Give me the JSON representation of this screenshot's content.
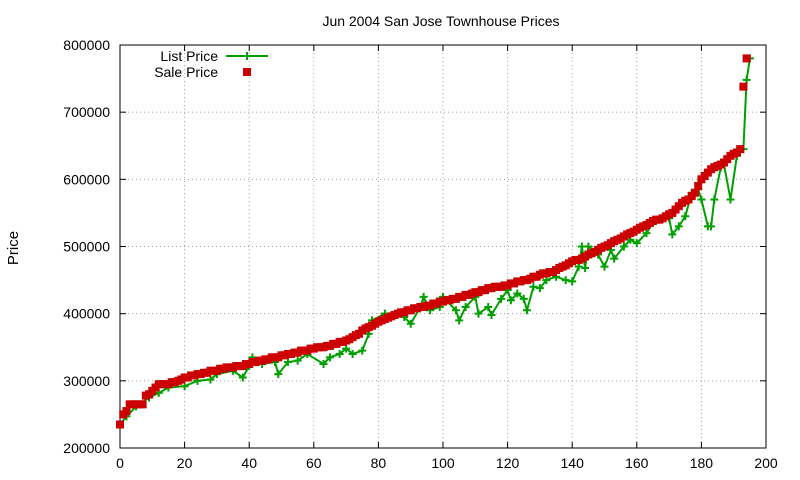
{
  "chart_data": {
    "type": "scatter",
    "title": "Jun 2004 San Jose Townhouse Prices",
    "xlabel": "",
    "ylabel": "Price",
    "xlim": [
      0,
      200
    ],
    "ylim": [
      200000,
      800000
    ],
    "xticks": [
      0,
      20,
      40,
      60,
      80,
      100,
      120,
      140,
      160,
      180,
      200
    ],
    "yticks": [
      200000,
      300000,
      400000,
      500000,
      600000,
      700000,
      800000
    ],
    "grid": true,
    "legend_position": "top-left",
    "series": [
      {
        "name": "List Price",
        "style": "linespoints",
        "color": "#00a000",
        "points": [
          [
            0,
            235000
          ],
          [
            2,
            247000
          ],
          [
            5,
            262000
          ],
          [
            9,
            275000
          ],
          [
            12,
            282000
          ],
          [
            15,
            290000
          ],
          [
            20,
            292000
          ],
          [
            24,
            300000
          ],
          [
            28,
            302000
          ],
          [
            30,
            310000
          ],
          [
            35,
            315000
          ],
          [
            38,
            305000
          ],
          [
            40,
            322000
          ],
          [
            41,
            335000
          ],
          [
            44,
            325000
          ],
          [
            48,
            328000
          ],
          [
            49,
            310000
          ],
          [
            52,
            328000
          ],
          [
            55,
            330000
          ],
          [
            58,
            340000
          ],
          [
            63,
            325000
          ],
          [
            65,
            335000
          ],
          [
            68,
            340000
          ],
          [
            70,
            348000
          ],
          [
            72,
            340000
          ],
          [
            75,
            345000
          ],
          [
            77,
            370000
          ],
          [
            78,
            390000
          ],
          [
            82,
            400000
          ],
          [
            85,
            398000
          ],
          [
            88,
            395000
          ],
          [
            90,
            385000
          ],
          [
            93,
            410000
          ],
          [
            94,
            425000
          ],
          [
            96,
            405000
          ],
          [
            99,
            410000
          ],
          [
            100,
            425000
          ],
          [
            104,
            405000
          ],
          [
            105,
            390000
          ],
          [
            107,
            410000
          ],
          [
            110,
            425000
          ],
          [
            111,
            400000
          ],
          [
            114,
            410000
          ],
          [
            115,
            398000
          ],
          [
            118,
            422000
          ],
          [
            120,
            435000
          ],
          [
            121,
            420000
          ],
          [
            123,
            430000
          ],
          [
            125,
            422000
          ],
          [
            126,
            405000
          ],
          [
            128,
            440000
          ],
          [
            130,
            438000
          ],
          [
            132,
            450000
          ],
          [
            135,
            455000
          ],
          [
            138,
            450000
          ],
          [
            140,
            448000
          ],
          [
            142,
            470000
          ],
          [
            143,
            500000
          ],
          [
            144,
            468000
          ],
          [
            145,
            500000
          ],
          [
            148,
            488000
          ],
          [
            150,
            470000
          ],
          [
            152,
            495000
          ],
          [
            153,
            482000
          ],
          [
            156,
            500000
          ],
          [
            158,
            510000
          ],
          [
            160,
            505000
          ],
          [
            163,
            520000
          ],
          [
            165,
            535000
          ],
          [
            167,
            540000
          ],
          [
            170,
            542000
          ],
          [
            171,
            518000
          ],
          [
            173,
            530000
          ],
          [
            175,
            545000
          ],
          [
            177,
            580000
          ],
          [
            179,
            585000
          ],
          [
            180,
            570000
          ],
          [
            182,
            530000
          ],
          [
            183,
            530000
          ],
          [
            184,
            570000
          ],
          [
            186,
            618000
          ],
          [
            187,
            622000
          ],
          [
            189,
            570000
          ],
          [
            191,
            635000
          ],
          [
            193,
            645000
          ],
          [
            194,
            748000
          ],
          [
            195,
            780000
          ]
        ]
      },
      {
        "name": "Sale Price",
        "style": "points",
        "color": "#cc0000",
        "points": [
          [
            0,
            235000
          ],
          [
            1,
            250000
          ],
          [
            2,
            255000
          ],
          [
            3,
            265000
          ],
          [
            4,
            265000
          ],
          [
            5,
            265000
          ],
          [
            6,
            265000
          ],
          [
            7,
            265000
          ],
          [
            8,
            278000
          ],
          [
            9,
            280000
          ],
          [
            10,
            285000
          ],
          [
            11,
            290000
          ],
          [
            12,
            295000
          ],
          [
            13,
            295000
          ],
          [
            14,
            295000
          ],
          [
            15,
            295000
          ],
          [
            16,
            298000
          ],
          [
            17,
            298000
          ],
          [
            18,
            300000
          ],
          [
            19,
            302000
          ],
          [
            20,
            305000
          ],
          [
            21,
            305000
          ],
          [
            22,
            308000
          ],
          [
            23,
            308000
          ],
          [
            24,
            310000
          ],
          [
            25,
            310000
          ],
          [
            26,
            312000
          ],
          [
            27,
            312000
          ],
          [
            28,
            315000
          ],
          [
            29,
            315000
          ],
          [
            30,
            315000
          ],
          [
            31,
            318000
          ],
          [
            32,
            318000
          ],
          [
            33,
            320000
          ],
          [
            34,
            320000
          ],
          [
            35,
            320000
          ],
          [
            36,
            322000
          ],
          [
            37,
            322000
          ],
          [
            38,
            322000
          ],
          [
            39,
            325000
          ],
          [
            40,
            325000
          ],
          [
            41,
            328000
          ],
          [
            42,
            328000
          ],
          [
            43,
            330000
          ],
          [
            44,
            330000
          ],
          [
            45,
            332000
          ],
          [
            46,
            332000
          ],
          [
            47,
            335000
          ],
          [
            48,
            335000
          ],
          [
            49,
            335000
          ],
          [
            50,
            338000
          ],
          [
            51,
            338000
          ],
          [
            52,
            340000
          ],
          [
            53,
            340000
          ],
          [
            54,
            342000
          ],
          [
            55,
            342000
          ],
          [
            56,
            345000
          ],
          [
            57,
            345000
          ],
          [
            58,
            345000
          ],
          [
            59,
            348000
          ],
          [
            60,
            348000
          ],
          [
            61,
            350000
          ],
          [
            62,
            350000
          ],
          [
            63,
            350000
          ],
          [
            64,
            352000
          ],
          [
            65,
            352000
          ],
          [
            66,
            355000
          ],
          [
            67,
            355000
          ],
          [
            68,
            358000
          ],
          [
            69,
            358000
          ],
          [
            70,
            360000
          ],
          [
            71,
            362000
          ],
          [
            72,
            365000
          ],
          [
            73,
            368000
          ],
          [
            74,
            370000
          ],
          [
            75,
            375000
          ],
          [
            76,
            378000
          ],
          [
            77,
            380000
          ],
          [
            78,
            382000
          ],
          [
            79,
            385000
          ],
          [
            80,
            388000
          ],
          [
            81,
            390000
          ],
          [
            82,
            392000
          ],
          [
            83,
            394000
          ],
          [
            84,
            396000
          ],
          [
            85,
            398000
          ],
          [
            86,
            400000
          ],
          [
            87,
            402000
          ],
          [
            88,
            402000
          ],
          [
            89,
            405000
          ],
          [
            90,
            405000
          ],
          [
            91,
            408000
          ],
          [
            92,
            408000
          ],
          [
            93,
            410000
          ],
          [
            94,
            410000
          ],
          [
            95,
            412000
          ],
          [
            96,
            412000
          ],
          [
            97,
            415000
          ],
          [
            98,
            415000
          ],
          [
            99,
            418000
          ],
          [
            100,
            418000
          ],
          [
            101,
            420000
          ],
          [
            102,
            420000
          ],
          [
            103,
            422000
          ],
          [
            104,
            422000
          ],
          [
            105,
            425000
          ],
          [
            106,
            425000
          ],
          [
            107,
            428000
          ],
          [
            108,
            428000
          ],
          [
            109,
            430000
          ],
          [
            110,
            432000
          ],
          [
            111,
            432000
          ],
          [
            112,
            435000
          ],
          [
            113,
            435000
          ],
          [
            114,
            438000
          ],
          [
            115,
            438000
          ],
          [
            116,
            440000
          ],
          [
            117,
            440000
          ],
          [
            118,
            440000
          ],
          [
            119,
            442000
          ],
          [
            120,
            442000
          ],
          [
            121,
            445000
          ],
          [
            122,
            445000
          ],
          [
            123,
            448000
          ],
          [
            124,
            448000
          ],
          [
            125,
            450000
          ],
          [
            126,
            450000
          ],
          [
            127,
            452000
          ],
          [
            128,
            455000
          ],
          [
            129,
            455000
          ],
          [
            130,
            458000
          ],
          [
            131,
            460000
          ],
          [
            132,
            460000
          ],
          [
            133,
            462000
          ],
          [
            134,
            462000
          ],
          [
            135,
            465000
          ],
          [
            136,
            468000
          ],
          [
            137,
            470000
          ],
          [
            138,
            472000
          ],
          [
            139,
            475000
          ],
          [
            140,
            478000
          ],
          [
            141,
            480000
          ],
          [
            142,
            480000
          ],
          [
            143,
            482000
          ],
          [
            144,
            485000
          ],
          [
            145,
            488000
          ],
          [
            146,
            490000
          ],
          [
            147,
            492000
          ],
          [
            148,
            495000
          ],
          [
            149,
            498000
          ],
          [
            150,
            500000
          ],
          [
            151,
            502000
          ],
          [
            152,
            505000
          ],
          [
            153,
            508000
          ],
          [
            154,
            510000
          ],
          [
            155,
            512000
          ],
          [
            156,
            515000
          ],
          [
            157,
            518000
          ],
          [
            158,
            520000
          ],
          [
            159,
            522000
          ],
          [
            160,
            525000
          ],
          [
            161,
            528000
          ],
          [
            162,
            530000
          ],
          [
            163,
            532000
          ],
          [
            164,
            535000
          ],
          [
            165,
            538000
          ],
          [
            166,
            540000
          ],
          [
            167,
            540000
          ],
          [
            168,
            542000
          ],
          [
            169,
            545000
          ],
          [
            170,
            548000
          ],
          [
            171,
            550000
          ],
          [
            172,
            555000
          ],
          [
            173,
            560000
          ],
          [
            174,
            565000
          ],
          [
            175,
            568000
          ],
          [
            176,
            570000
          ],
          [
            177,
            575000
          ],
          [
            178,
            580000
          ],
          [
            179,
            590000
          ],
          [
            180,
            600000
          ],
          [
            181,
            605000
          ],
          [
            182,
            610000
          ],
          [
            183,
            615000
          ],
          [
            184,
            618000
          ],
          [
            185,
            620000
          ],
          [
            186,
            622000
          ],
          [
            187,
            625000
          ],
          [
            188,
            630000
          ],
          [
            189,
            635000
          ],
          [
            190,
            638000
          ],
          [
            191,
            640000
          ],
          [
            192,
            645000
          ],
          [
            193,
            738000
          ],
          [
            194,
            780000
          ]
        ]
      }
    ]
  }
}
